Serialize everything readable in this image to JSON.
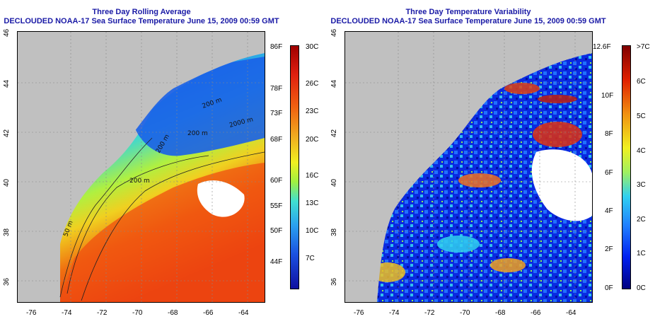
{
  "panels": [
    {
      "title": "Three Day Rolling Average",
      "subtitle": "DECLOUDED NOAA-17 Sea Surface Temperature June 15, 2009 00:59 GMT",
      "lon_ticks": [
        "-76",
        "-74",
        "-72",
        "-70",
        "-68",
        "-66",
        "-64"
      ],
      "lat_ticks": [
        "46",
        "44",
        "42",
        "40",
        "38",
        "36"
      ],
      "contour_labels": [
        "200 m",
        "200 m",
        "2000 m",
        "200 m",
        "200 m",
        "50 m"
      ],
      "colorbar_left": [
        "86F",
        "78F",
        "73F",
        "68F",
        "60F",
        "55F",
        "50F",
        "44F"
      ],
      "colorbar_right": [
        "30C",
        "26C",
        "23C",
        "20C",
        "16C",
        "13C",
        "10C",
        "7C"
      ]
    },
    {
      "title": "Three Day Temperature Variability",
      "subtitle": "DECLOUDED NOAA-17 Sea Surface Temperature June 15, 2009 00:59 GMT",
      "lon_ticks": [
        "-76",
        "-74",
        "-72",
        "-70",
        "-68",
        "-66",
        "-64"
      ],
      "lat_ticks": [
        "46",
        "44",
        "42",
        "40",
        "38",
        "36"
      ],
      "colorbar_left": [
        "12.6F",
        "10F",
        "8F",
        "6F",
        "4F",
        "2F",
        "0F"
      ],
      "colorbar_right": [
        ">7C",
        "6C",
        "5C",
        "4C",
        "3C",
        "2C",
        "1C",
        "0C"
      ]
    }
  ],
  "colors": {
    "land": "#c0c0c0",
    "title": "#1a1aa6",
    "sst_scale": [
      "#1010a0",
      "#1a40e0",
      "#2aa0f0",
      "#40e0d0",
      "#a0f040",
      "#f0f020",
      "#f0a010",
      "#f03010",
      "#a00000"
    ],
    "var_scale": [
      "#000080",
      "#0020f0",
      "#2080ff",
      "#30d0f0",
      "#a0f060",
      "#f0f020",
      "#f09010",
      "#e02000",
      "#800000"
    ]
  }
}
